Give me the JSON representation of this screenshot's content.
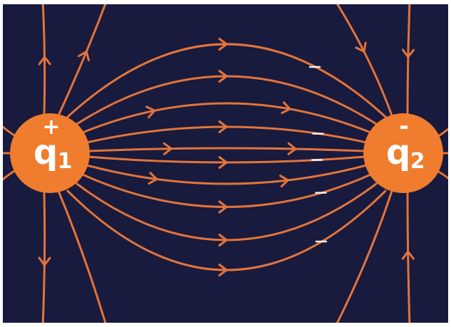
{
  "charges": [
    {
      "id": "q1",
      "sign": "+",
      "symbol": "q",
      "subscript": "1"
    },
    {
      "id": "q2",
      "sign": "-",
      "symbol": "q",
      "subscript": "2"
    }
  ],
  "colors": {
    "background": "#181a3e",
    "field_line": "#e2743a",
    "charge_fill": "#f07c2e",
    "charge_text": "#ffffff",
    "frame": "#ffffff",
    "highlight": "#ffffff"
  }
}
